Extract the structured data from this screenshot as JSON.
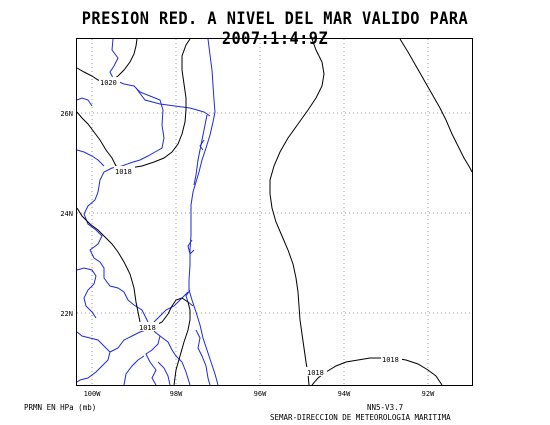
{
  "title": "PRESION RED. A NIVEL DEL MAR VALIDO PARA 2007:1:4:9Z",
  "footer": {
    "units": "PRMN EN HPa (mb)",
    "model": "NN5-V3.7",
    "agency": "SEMAR-DIRECCION DE METEOROLOGIA MARITIMA"
  },
  "lon_labels": [
    "100W",
    "98W",
    "96W",
    "94W",
    "92W"
  ],
  "lat_labels": [
    "26N",
    "24N",
    "22N"
  ],
  "isobar_labels": [
    "1020",
    "1018",
    "1018",
    "1018",
    "1018"
  ],
  "colors": {
    "coastline": "#1f2bd9",
    "isobar": "#000000",
    "grid": "#9a9a9a",
    "frame": "#000000"
  }
}
